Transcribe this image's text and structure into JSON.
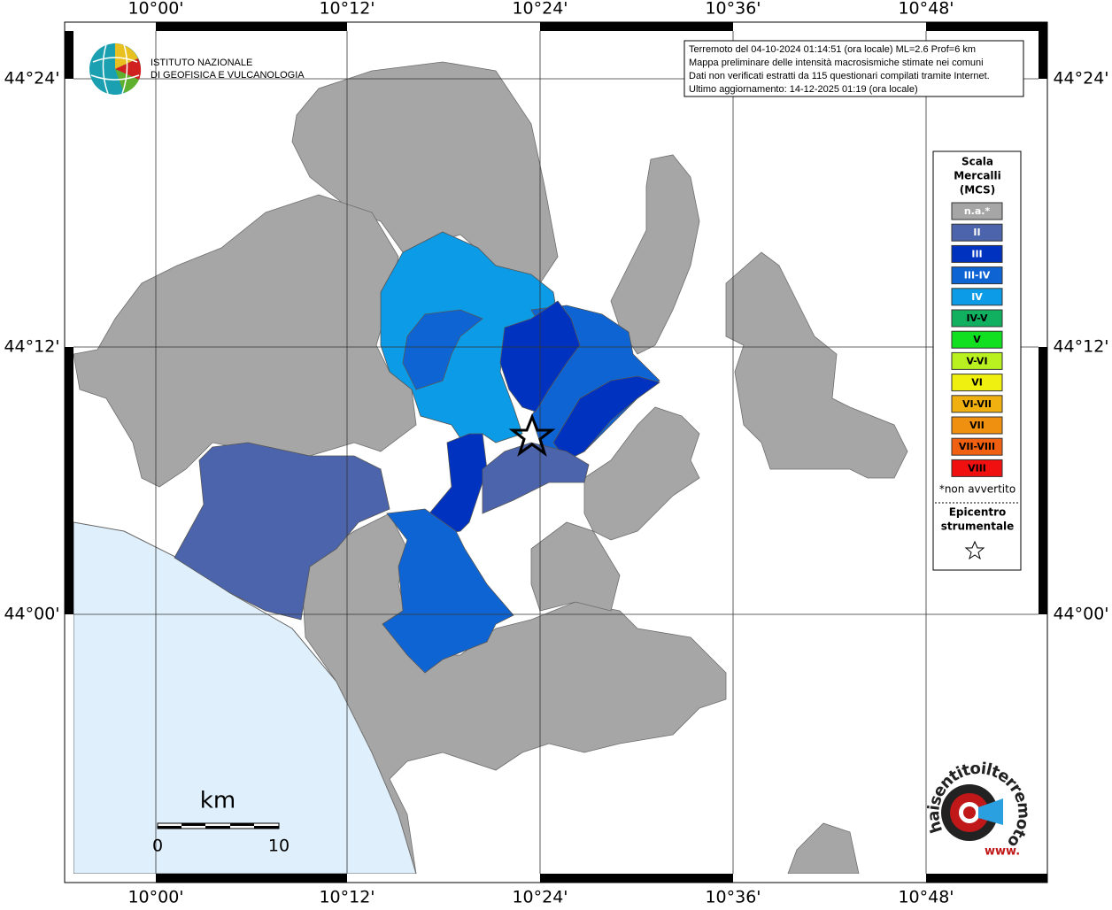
{
  "axes": {
    "x_labels": [
      "10°00'",
      "10°12'",
      "10°24'",
      "10°36'",
      "10°48'"
    ],
    "y_labels": [
      "44°24'",
      "44°12'",
      "44°00'"
    ]
  },
  "logo": {
    "line1": "ISTITUTO NAZIONALE",
    "line2": "DI GEOFISICA E VULCANOLOGIA"
  },
  "info_box": [
    "Terremoto del 04-10-2024 01:14:51 (ora locale) ML=2.6 Prof=6 km",
    "Mappa preliminare delle intensità macrosismiche stimate nei comuni",
    "Dati non verificati estratti da 115 questionari compilati tramite Internet.",
    "Ultimo aggiornamento: 14-12-2025 01:19 (ora locale)"
  ],
  "legend": {
    "title": [
      "Scala",
      "Mercalli",
      "(MCS)"
    ],
    "items": [
      {
        "label": "n.a.*",
        "color": "#a6a6a6"
      },
      {
        "label": "II",
        "color": "#4c64ac"
      },
      {
        "label": "III",
        "color": "#0032c0"
      },
      {
        "label": "III-IV",
        "color": "#0f64d4"
      },
      {
        "label": "IV",
        "color": "#0c9be6"
      },
      {
        "label": "IV-V",
        "color": "#10b060"
      },
      {
        "label": "V",
        "color": "#10e020"
      },
      {
        "label": "V-VI",
        "color": "#b8f020"
      },
      {
        "label": "VI",
        "color": "#f0f010"
      },
      {
        "label": "VI-VII",
        "color": "#f0b010"
      },
      {
        "label": "VII",
        "color": "#f09010"
      },
      {
        "label": "VII-VIII",
        "color": "#f06010"
      },
      {
        "label": "VIII",
        "color": "#f01010"
      }
    ],
    "note": "*non avvertito",
    "epicenter": [
      "Epicentro",
      "strumentale"
    ]
  },
  "scale_bar": {
    "unit": "km",
    "start": "0",
    "end": "10"
  },
  "watermark": {
    "site": "haisentitoilterremoto.it",
    "prefix": "www."
  }
}
